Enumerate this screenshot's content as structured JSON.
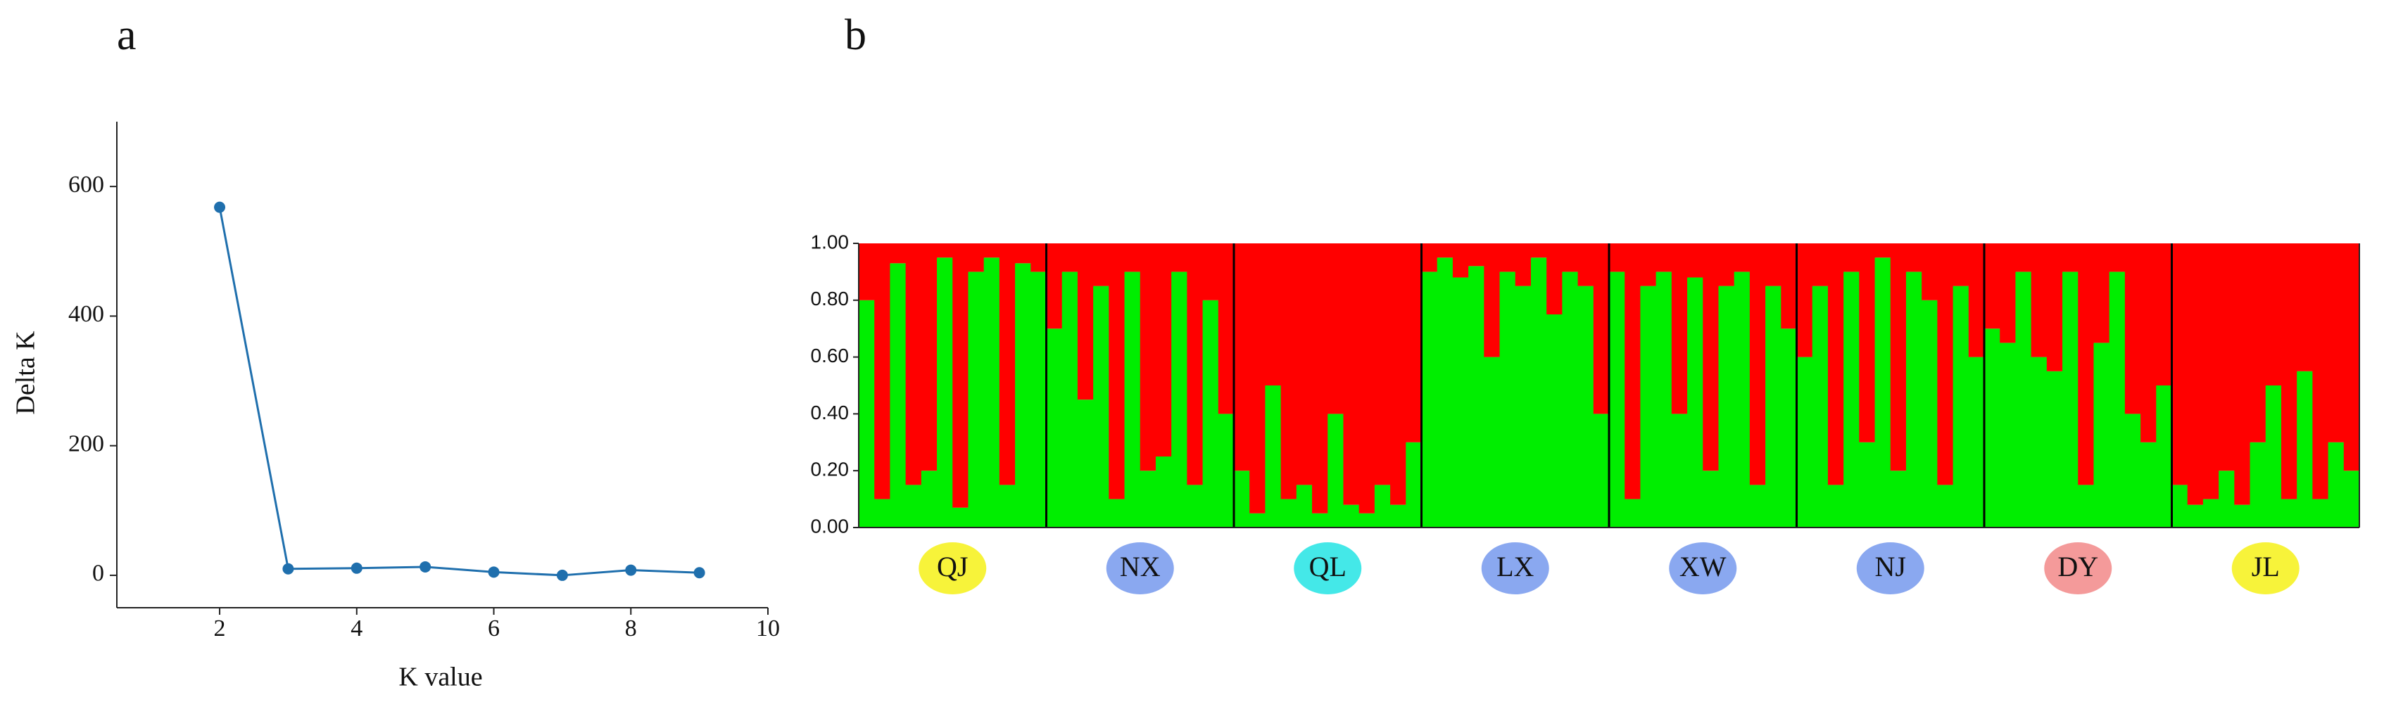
{
  "chart_data": [
    {
      "type": "line",
      "panel_label": "a",
      "y_label": "Delta K",
      "x_label": "K value",
      "color": "#1f6fad",
      "x": [
        2,
        3,
        4,
        5,
        6,
        7,
        8,
        9
      ],
      "values": [
        568,
        10,
        11,
        13,
        5,
        0,
        8,
        4
      ],
      "xlim": [
        0.5,
        10
      ],
      "xticks": [
        2,
        4,
        6,
        8,
        10
      ],
      "ylim": [
        -50,
        700
      ],
      "yticks": [
        0,
        200,
        400,
        600
      ]
    },
    {
      "type": "structure",
      "panel_label": "b",
      "ylim": [
        0,
        1
      ],
      "yticks": [
        {
          "value": 0,
          "label": "0.00"
        },
        {
          "value": 0.2,
          "label": "0.20"
        },
        {
          "value": 0.4,
          "label": "0.40"
        },
        {
          "value": 0.6,
          "label": "0.60"
        },
        {
          "value": 0.8,
          "label": "0.80"
        },
        {
          "value": 1,
          "label": "1.00"
        }
      ],
      "groups": [
        {
          "label": "QJ",
          "color": "#f7f33a"
        },
        {
          "label": "NX",
          "color": "#8aa8f0"
        },
        {
          "label": "QL",
          "color": "#44e8e8"
        },
        {
          "label": "LX",
          "color": "#8aa8f0"
        },
        {
          "label": "XW",
          "color": "#8aa8f0"
        },
        {
          "label": "NJ",
          "color": "#8aa8f0"
        },
        {
          "label": "DY",
          "color": "#f49a9a"
        },
        {
          "label": "JL",
          "color": "#f7f33a"
        }
      ],
      "series": [
        {
          "color": "#00ee00",
          "values": [
            [
              0.8,
              0.1,
              0.93,
              0.15,
              0.2,
              0.95,
              0.07,
              0.9,
              0.95,
              0.15,
              0.93,
              0.9
            ],
            [
              0.7,
              0.9,
              0.45,
              0.85,
              0.1,
              0.9,
              0.2,
              0.25,
              0.9,
              0.15,
              0.8,
              0.4
            ],
            [
              0.2,
              0.05,
              0.5,
              0.1,
              0.15,
              0.05,
              0.4,
              0.08,
              0.05,
              0.15,
              0.08,
              0.3
            ],
            [
              0.9,
              0.95,
              0.88,
              0.92,
              0.6,
              0.9,
              0.85,
              0.95,
              0.75,
              0.9,
              0.85,
              0.4
            ],
            [
              0.9,
              0.1,
              0.85,
              0.9,
              0.4,
              0.88,
              0.2,
              0.85,
              0.9,
              0.15,
              0.85,
              0.7
            ],
            [
              0.6,
              0.85,
              0.15,
              0.9,
              0.3,
              0.95,
              0.2,
              0.9,
              0.8,
              0.15,
              0.85,
              0.6
            ],
            [
              0.7,
              0.65,
              0.9,
              0.6,
              0.55,
              0.9,
              0.15,
              0.65,
              0.9,
              0.4,
              0.3,
              0.5
            ],
            [
              0.15,
              0.08,
              0.1,
              0.2,
              0.08,
              0.3,
              0.5,
              0.1,
              0.55,
              0.1,
              0.3,
              0.2
            ]
          ]
        },
        {
          "color": "#ff0000",
          "values": [
            [
              0.2,
              0.9,
              0.07,
              0.85,
              0.8,
              0.05,
              0.93,
              0.1,
              0.05,
              0.85,
              0.07,
              0.1
            ],
            [
              0.3,
              0.1,
              0.55,
              0.15,
              0.9,
              0.1,
              0.8,
              0.75,
              0.1,
              0.85,
              0.2,
              0.6
            ],
            [
              0.8,
              0.95,
              0.5,
              0.9,
              0.85,
              0.95,
              0.6,
              0.92,
              0.95,
              0.85,
              0.92,
              0.7
            ],
            [
              0.1,
              0.05,
              0.12,
              0.08,
              0.4,
              0.1,
              0.15,
              0.05,
              0.25,
              0.1,
              0.15,
              0.6
            ],
            [
              0.1,
              0.9,
              0.15,
              0.1,
              0.6,
              0.12,
              0.8,
              0.15,
              0.1,
              0.85,
              0.15,
              0.3
            ],
            [
              0.4,
              0.15,
              0.85,
              0.1,
              0.7,
              0.05,
              0.8,
              0.1,
              0.2,
              0.85,
              0.15,
              0.4
            ],
            [
              0.3,
              0.35,
              0.1,
              0.4,
              0.45,
              0.1,
              0.85,
              0.35,
              0.1,
              0.6,
              0.7,
              0.5
            ],
            [
              0.85,
              0.92,
              0.9,
              0.8,
              0.92,
              0.7,
              0.5,
              0.9,
              0.45,
              0.9,
              0.7,
              0.8
            ]
          ]
        }
      ]
    }
  ]
}
